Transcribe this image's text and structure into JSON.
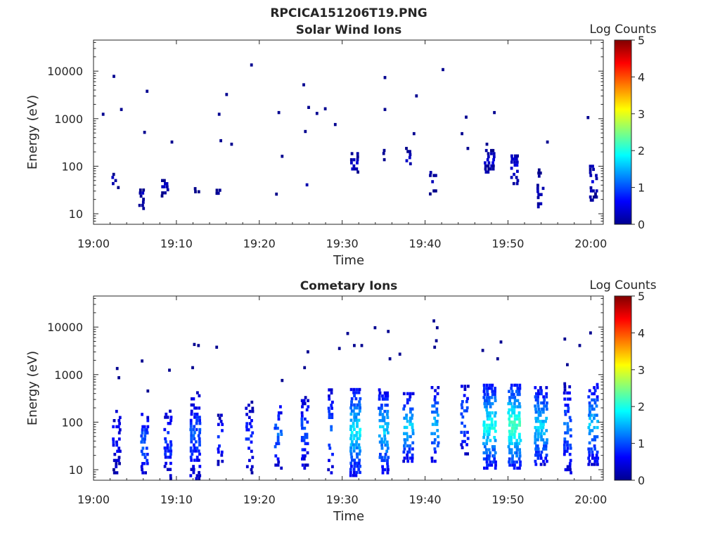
{
  "figure_title": "RPCICA151206T19.PNG",
  "chart_data": [
    {
      "type": "heatmap",
      "title": "Solar Wind Ions",
      "xlabel": "Time",
      "ylabel": "Energy (eV)",
      "x_ticks": [
        "19:00",
        "19:10",
        "19:20",
        "19:30",
        "19:40",
        "19:50",
        "20:00"
      ],
      "x_range_minutes": [
        0,
        61.5
      ],
      "y_scale": "log",
      "y_ticks": [
        10,
        100,
        1000,
        10000
      ],
      "ylim": [
        6,
        45000
      ],
      "colorbar": {
        "label": "Log Counts",
        "ticks": [
          0,
          1,
          2,
          3,
          4,
          5
        ],
        "range": [
          0,
          5
        ],
        "colormap": "jet"
      },
      "seed": 7,
      "clusters": [
        {
          "t": 2.5,
          "e_lo": 40,
          "e_hi": 65,
          "v": 0.2,
          "density": 0.6,
          "w": 2
        },
        {
          "t": 3.0,
          "e_lo": 33,
          "e_hi": 38,
          "v": 0.1,
          "density": 0.8,
          "w": 1
        },
        {
          "t": 5.8,
          "e_lo": 12,
          "e_hi": 35,
          "v": 0.2,
          "density": 0.5,
          "w": 2
        },
        {
          "t": 8.6,
          "e_lo": 22,
          "e_hi": 50,
          "v": 0.2,
          "density": 0.6,
          "w": 3
        },
        {
          "t": 12.5,
          "e_lo": 27,
          "e_hi": 35,
          "v": 0.1,
          "density": 0.8,
          "w": 2
        },
        {
          "t": 15.0,
          "e_lo": 25,
          "e_hi": 35,
          "v": 0.1,
          "density": 0.8,
          "w": 2
        },
        {
          "t": 22.0,
          "e_lo": 24,
          "e_hi": 32,
          "v": 0.1,
          "density": 0.7,
          "w": 1
        },
        {
          "t": 25.8,
          "e_lo": 28,
          "e_hi": 42,
          "v": 0.1,
          "density": 0.7,
          "w": 1
        },
        {
          "t": 31.5,
          "e_lo": 70,
          "e_hi": 180,
          "v": 0.3,
          "density": 0.6,
          "w": 3
        },
        {
          "t": 35.0,
          "e_lo": 110,
          "e_hi": 200,
          "v": 0.2,
          "density": 0.5,
          "w": 1
        },
        {
          "t": 38.0,
          "e_lo": 90,
          "e_hi": 240,
          "v": 0.2,
          "density": 0.4,
          "w": 2
        },
        {
          "t": 41.0,
          "e_lo": 18,
          "e_hi": 90,
          "v": 0.1,
          "density": 0.3,
          "w": 3
        },
        {
          "t": 47.8,
          "e_lo": 70,
          "e_hi": 210,
          "v": 0.3,
          "density": 0.6,
          "w": 4
        },
        {
          "t": 50.8,
          "e_lo": 40,
          "e_hi": 160,
          "v": 0.4,
          "density": 0.6,
          "w": 3
        },
        {
          "t": 54.0,
          "e_lo": 13,
          "e_hi": 80,
          "v": 0.2,
          "density": 0.4,
          "w": 3
        },
        {
          "t": 60.3,
          "e_lo": 18,
          "e_hi": 100,
          "v": 0.3,
          "density": 0.55,
          "w": 3
        }
      ],
      "isolated_points": [
        [
          1.0,
          1150
        ],
        [
          2.3,
          7200
        ],
        [
          3.2,
          1450
        ],
        [
          6.3,
          3500
        ],
        [
          6.0,
          480
        ],
        [
          9.3,
          300
        ],
        [
          15.9,
          3000
        ],
        [
          15.0,
          1150
        ],
        [
          15.2,
          320
        ],
        [
          16.5,
          270
        ],
        [
          18.9,
          12500
        ],
        [
          22.2,
          1250
        ],
        [
          22.6,
          150
        ],
        [
          25.2,
          4800
        ],
        [
          25.4,
          500
        ],
        [
          25.8,
          1600
        ],
        [
          26.8,
          1200
        ],
        [
          27.8,
          1500
        ],
        [
          29.0,
          700
        ],
        [
          35.0,
          6800
        ],
        [
          35.0,
          1450
        ],
        [
          38.8,
          2800
        ],
        [
          38.5,
          450
        ],
        [
          42.0,
          10000
        ],
        [
          44.3,
          450
        ],
        [
          44.8,
          1000
        ],
        [
          45.0,
          220
        ],
        [
          47.3,
          270
        ],
        [
          48.2,
          1250
        ],
        [
          59.5,
          980
        ],
        [
          54.6,
          300
        ]
      ]
    },
    {
      "type": "heatmap",
      "title": "Cometary Ions",
      "xlabel": "Time",
      "ylabel": "Energy (eV)",
      "x_ticks": [
        "19:00",
        "19:10",
        "19:20",
        "19:30",
        "19:40",
        "19:50",
        "20:00"
      ],
      "x_range_minutes": [
        0,
        61.5
      ],
      "y_scale": "log",
      "y_ticks": [
        10,
        100,
        1000,
        10000
      ],
      "ylim": [
        6,
        45000
      ],
      "colorbar": {
        "label": "Log Counts",
        "ticks": [
          0,
          1,
          2,
          3,
          4,
          5
        ],
        "range": [
          0,
          5
        ],
        "colormap": "jet"
      },
      "seed": 13,
      "clusters": [
        {
          "t": 2.8,
          "e_lo": 8,
          "e_hi": 180,
          "v": 0.5,
          "density": 0.55,
          "w": 3
        },
        {
          "t": 6.2,
          "e_lo": 8,
          "e_hi": 150,
          "v": 0.9,
          "density": 0.5,
          "w": 3
        },
        {
          "t": 9.0,
          "e_lo": 6,
          "e_hi": 180,
          "v": 0.7,
          "density": 0.5,
          "w": 3
        },
        {
          "t": 12.3,
          "e_lo": 6,
          "e_hi": 400,
          "v": 0.8,
          "density": 0.55,
          "w": 4
        },
        {
          "t": 15.3,
          "e_lo": 12,
          "e_hi": 150,
          "v": 0.6,
          "density": 0.45,
          "w": 2
        },
        {
          "t": 18.8,
          "e_lo": 8,
          "e_hi": 280,
          "v": 0.6,
          "density": 0.5,
          "w": 3
        },
        {
          "t": 22.3,
          "e_lo": 10,
          "e_hi": 250,
          "v": 0.9,
          "density": 0.5,
          "w": 3
        },
        {
          "t": 25.5,
          "e_lo": 10,
          "e_hi": 350,
          "v": 0.8,
          "density": 0.5,
          "w": 3
        },
        {
          "t": 28.6,
          "e_lo": 8,
          "e_hi": 450,
          "v": 1.0,
          "density": 0.5,
          "w": 2
        },
        {
          "t": 31.6,
          "e_lo": 7,
          "e_hi": 500,
          "v": 1.4,
          "density": 0.7,
          "w": 4
        },
        {
          "t": 35.0,
          "e_lo": 8,
          "e_hi": 450,
          "v": 1.3,
          "density": 0.65,
          "w": 4
        },
        {
          "t": 38.0,
          "e_lo": 14,
          "e_hi": 400,
          "v": 1.3,
          "density": 0.6,
          "w": 4
        },
        {
          "t": 41.2,
          "e_lo": 14,
          "e_hi": 500,
          "v": 1.2,
          "density": 0.6,
          "w": 3
        },
        {
          "t": 44.8,
          "e_lo": 20,
          "e_hi": 600,
          "v": 0.9,
          "density": 0.45,
          "w": 3
        },
        {
          "t": 47.8,
          "e_lo": 10,
          "e_hi": 600,
          "v": 1.5,
          "density": 0.7,
          "w": 5
        },
        {
          "t": 50.8,
          "e_lo": 10,
          "e_hi": 600,
          "v": 1.7,
          "density": 0.75,
          "w": 5
        },
        {
          "t": 54.0,
          "e_lo": 12,
          "e_hi": 500,
          "v": 1.3,
          "density": 0.65,
          "w": 5
        },
        {
          "t": 57.2,
          "e_lo": 8,
          "e_hi": 600,
          "v": 0.9,
          "density": 0.55,
          "w": 3
        },
        {
          "t": 60.3,
          "e_lo": 12,
          "e_hi": 600,
          "v": 1.2,
          "density": 0.6,
          "w": 4
        }
      ],
      "isolated_points": [
        [
          2.7,
          1250
        ],
        [
          2.9,
          800
        ],
        [
          5.7,
          1800
        ],
        [
          6.4,
          420
        ],
        [
          9.0,
          1150
        ],
        [
          11.8,
          1300
        ],
        [
          12.0,
          4000
        ],
        [
          12.5,
          3800
        ],
        [
          14.7,
          3500
        ],
        [
          22.6,
          700
        ],
        [
          25.3,
          1300
        ],
        [
          25.7,
          2800
        ],
        [
          29.5,
          3300
        ],
        [
          30.5,
          6800
        ],
        [
          31.3,
          3800
        ],
        [
          32.2,
          3800
        ],
        [
          33.8,
          9000
        ],
        [
          35.4,
          7500
        ],
        [
          35.6,
          2000
        ],
        [
          36.8,
          2500
        ],
        [
          40.9,
          12500
        ],
        [
          41.3,
          9000
        ],
        [
          41.2,
          4800
        ],
        [
          41.0,
          3500
        ],
        [
          46.8,
          3000
        ],
        [
          49.0,
          4500
        ],
        [
          48.6,
          2000
        ],
        [
          56.7,
          5200
        ],
        [
          57.0,
          1500
        ],
        [
          58.5,
          3800
        ],
        [
          59.8,
          7000
        ]
      ]
    }
  ]
}
